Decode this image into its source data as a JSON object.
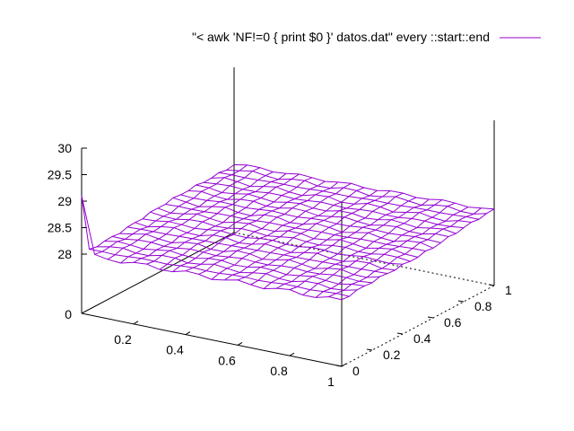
{
  "chart_data": {
    "type": "surface",
    "title": "",
    "legend": {
      "label": "\"< awk 'NF!=0 { print $0 }' datos.dat\" every ::start::end",
      "position": "top-right"
    },
    "colors": {
      "surface": "#9400d3",
      "axes": "#000000",
      "background": "#ffffff"
    },
    "x_axis": {
      "range": [
        0,
        1
      ],
      "ticks": [
        "0.2",
        "0.4",
        "0.6",
        "0.8",
        "1"
      ]
    },
    "y_axis": {
      "range": [
        0,
        1
      ],
      "ticks": [
        "0",
        "0.2",
        "0.4",
        "0.6",
        "0.8",
        "1"
      ]
    },
    "z_axis": {
      "range": [
        27.2,
        30
      ],
      "ticks": [
        "28",
        "28.5",
        "29",
        "29.5",
        "30"
      ],
      "base_label": "0"
    },
    "grid": {
      "nx": 20,
      "ny": 20
    },
    "surface_values": {
      "base_level": 28.0,
      "far_corner": 28.3,
      "spike_point": {
        "x": 0,
        "y": 0,
        "z": 29.1
      }
    }
  }
}
